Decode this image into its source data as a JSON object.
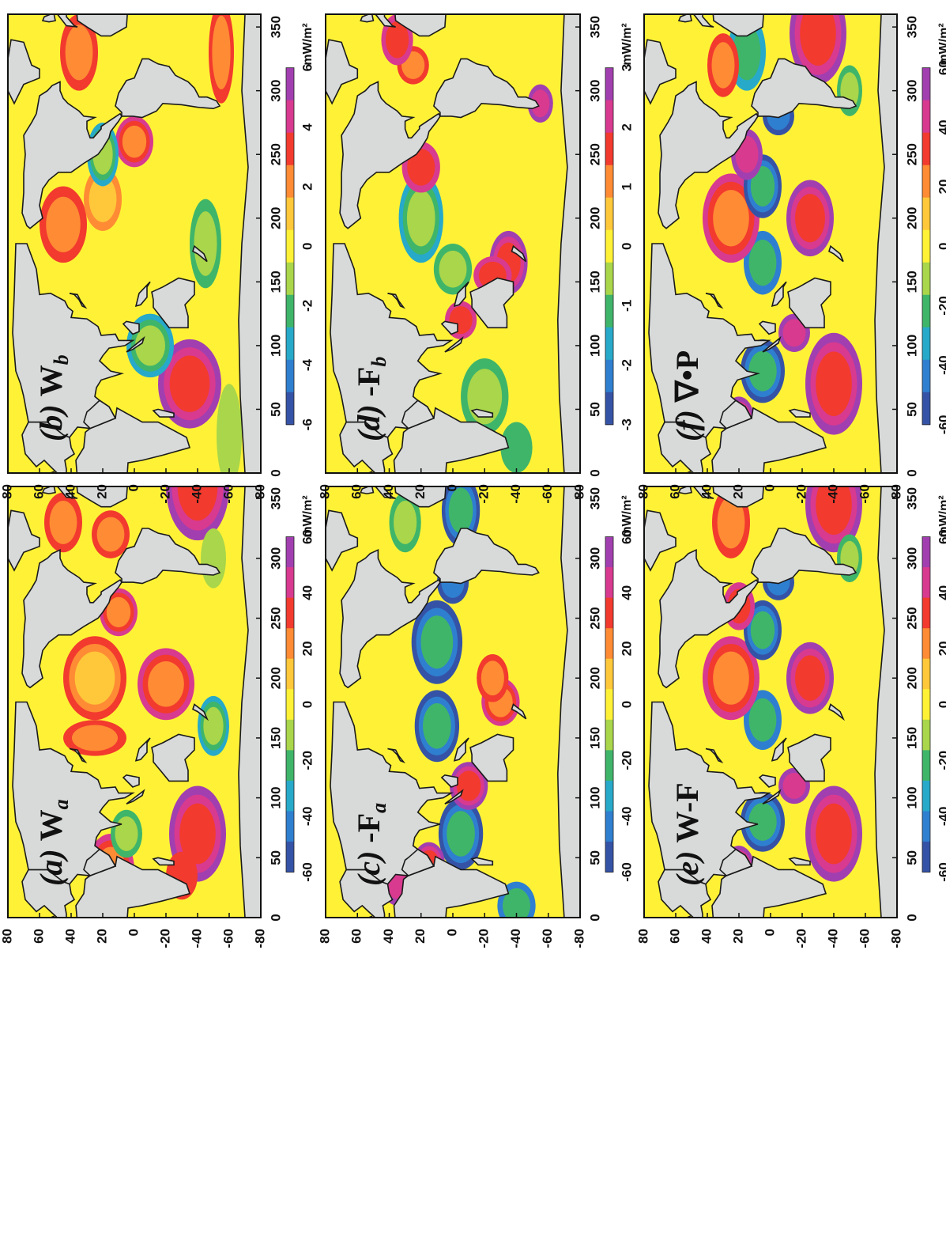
{
  "figure": {
    "x_ticks": [
      "0",
      "50",
      "100",
      "150",
      "200",
      "250",
      "300",
      "350"
    ],
    "y_ticks": [
      "80",
      "60",
      "40",
      "20",
      "0",
      "-20",
      "-40",
      "-60",
      "-80"
    ],
    "unit": "mW/m²",
    "colormap": [
      "#3553a6",
      "#2f7fd0",
      "#27a9c9",
      "#3fb56a",
      "#a9d64a",
      "#fff236",
      "#ffc83a",
      "#ff8b34",
      "#f23a2e",
      "#d83a8f",
      "#a23fb0"
    ],
    "land_color": "#d8d9d9",
    "panels": [
      {
        "id": "a",
        "label_prefix": "(a) ",
        "label_main": "W",
        "label_sub": "a",
        "colorbar_ticks": [
          "-60",
          "-40",
          "-20",
          "0",
          "20",
          "40",
          "60"
        ]
      },
      {
        "id": "b",
        "label_prefix": "(b) ",
        "label_main": "W",
        "label_sub": "b",
        "colorbar_ticks": [
          "-6",
          "-4",
          "-2",
          "0",
          "2",
          "4",
          "6"
        ]
      },
      {
        "id": "c",
        "label_prefix": "(c) ",
        "label_main": "-F",
        "label_sub": "a",
        "colorbar_ticks": [
          "-60",
          "-40",
          "-20",
          "0",
          "20",
          "40",
          "60"
        ]
      },
      {
        "id": "d",
        "label_prefix": "(d) ",
        "label_main": "-F",
        "label_sub": "b",
        "colorbar_ticks": [
          "-3",
          "-2",
          "-1",
          "0",
          "1",
          "2",
          "3"
        ]
      },
      {
        "id": "e",
        "label_prefix": "(e) ",
        "label_main": "W-F",
        "label_sub": "",
        "colorbar_ticks": [
          "-60",
          "-40",
          "-20",
          "0",
          "20",
          "40",
          "60"
        ]
      },
      {
        "id": "f",
        "label_prefix": "(f) ",
        "label_main": "∇•P",
        "label_sub": "",
        "colorbar_ticks": [
          "-60",
          "-40",
          "-20",
          "0",
          "20",
          "40",
          "60"
        ]
      }
    ]
  }
}
